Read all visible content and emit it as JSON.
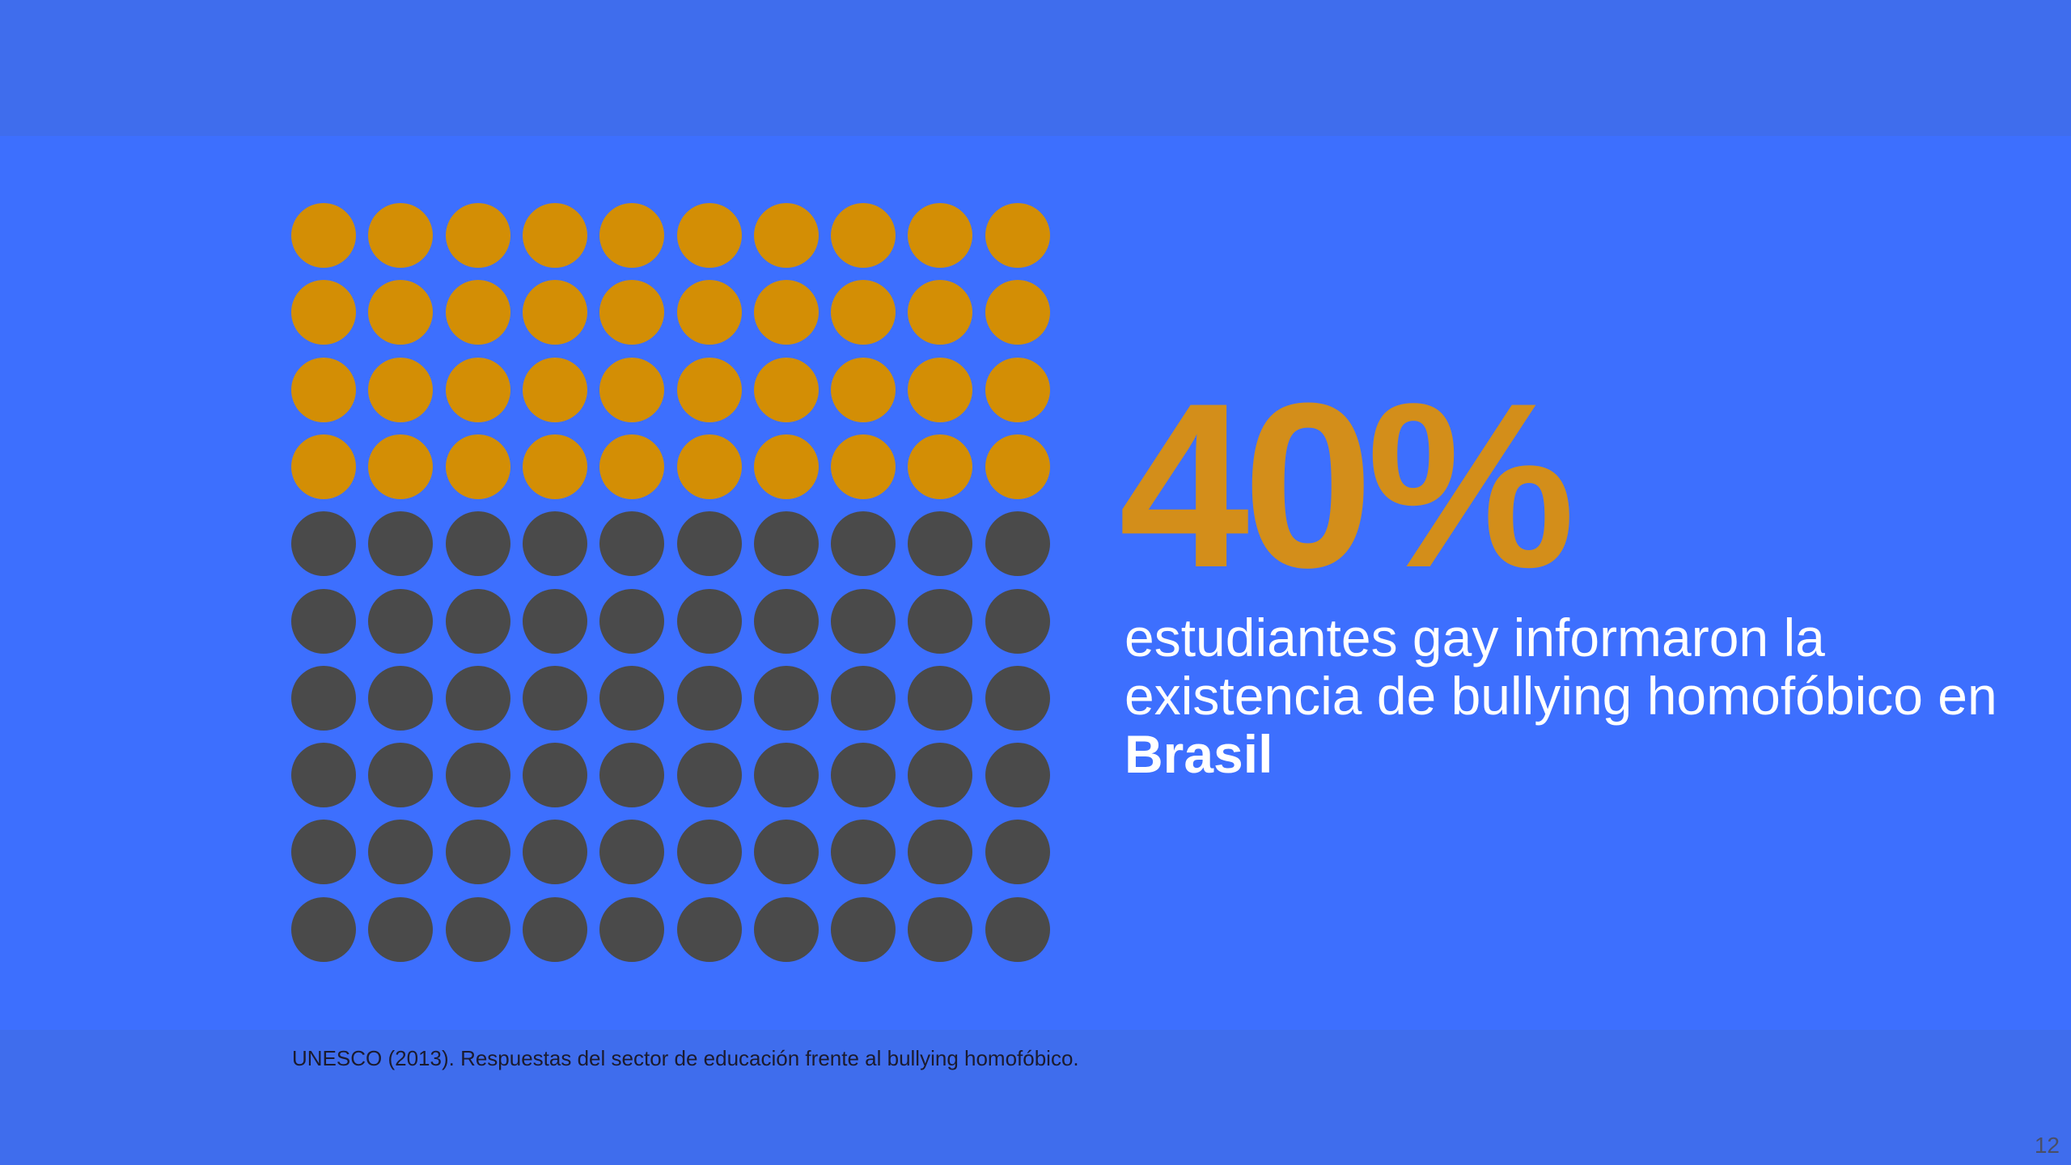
{
  "colors": {
    "filled": "#d38e05",
    "empty": "#4a4a4a",
    "stat": "#d38e1a"
  },
  "waffle": {
    "rows": 10,
    "cols": 10,
    "filled_fraction": 0.4
  },
  "stat": {
    "value": "40%"
  },
  "description": {
    "text": "estudiantes gay informaron la existencia de bullying homofóbico en",
    "emphasis": "Brasil"
  },
  "footer": {
    "source": "UNESCO (2013). Respuestas del sector de educación frente al bullying homofóbico.",
    "page_number": "12"
  }
}
